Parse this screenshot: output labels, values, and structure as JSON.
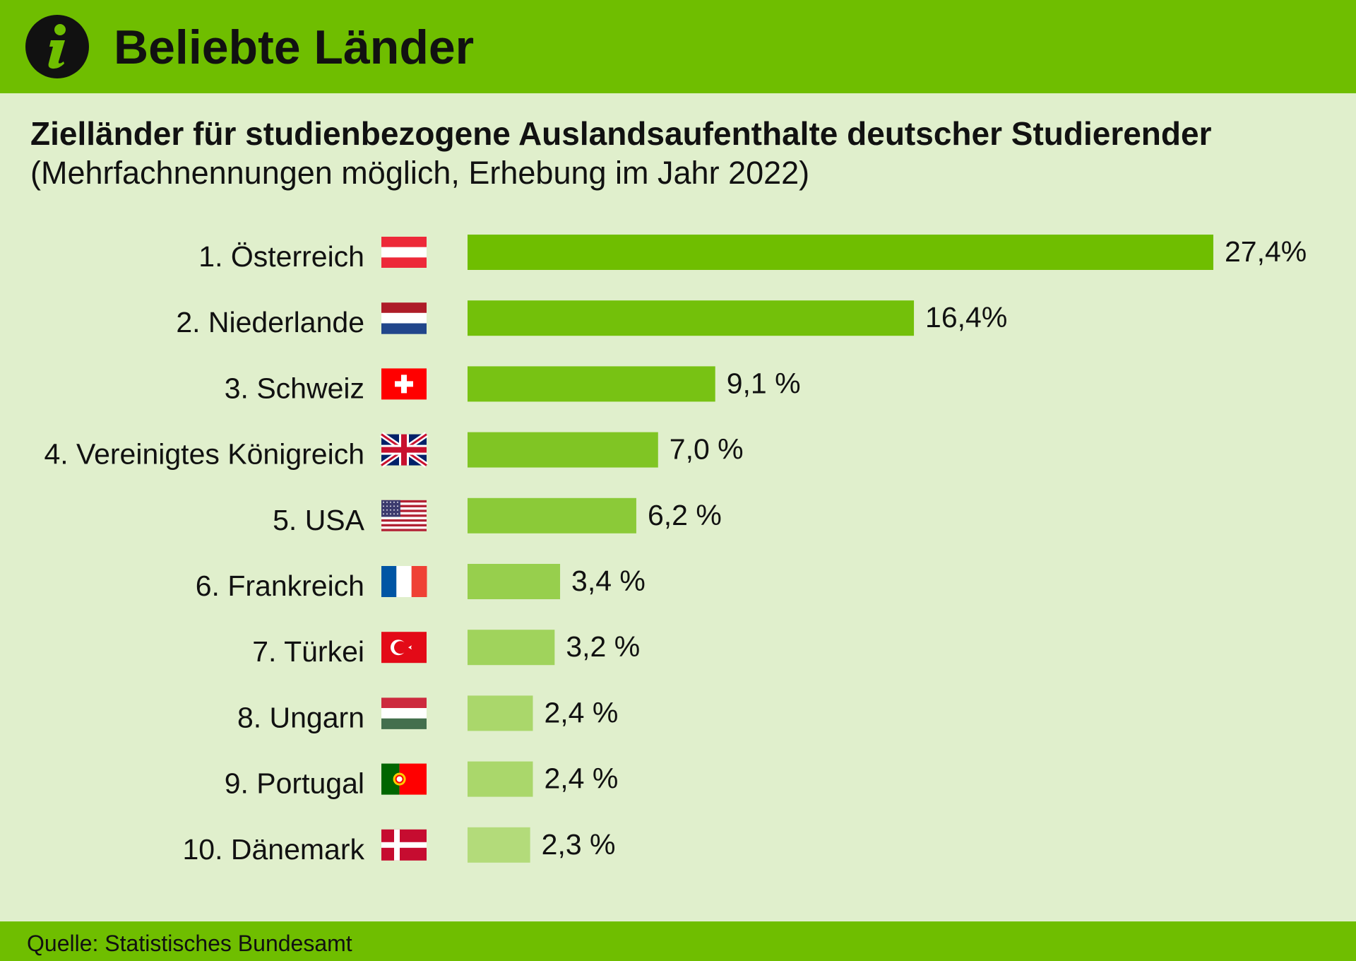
{
  "header": {
    "title": "Beliebte Länder",
    "icon": "info-icon",
    "background_color": "#6fbe00"
  },
  "chart_data": {
    "type": "bar",
    "orientation": "horizontal",
    "title": "Zielländer für studienbezogene Auslandsaufenthalte deutscher Studierender",
    "subtitle": "(Mehrfachnennungen möglich, Erhebung im Jahr 2022)",
    "xlabel": "",
    "ylabel": "",
    "xlim": [
      0,
      27.4
    ],
    "grid": false,
    "categories": [
      "1. Österreich",
      "2. Niederlande",
      "3. Schweiz",
      "4. Vereinigtes Königreich",
      "5. USA",
      "6. Frankreich",
      "7. Türkei",
      "8. Ungarn",
      "9. Portugal",
      "10. Dänemark"
    ],
    "values": [
      27.4,
      16.4,
      9.1,
      7.0,
      6.2,
      3.4,
      3.2,
      2.4,
      2.4,
      2.3
    ],
    "value_labels": [
      "27,4%",
      "16,4%",
      "9,1 %",
      "7,0 %",
      "6,2 %",
      "3,4 %",
      "3,2 %",
      "2,4 %",
      "2,4 %",
      "2,3 %"
    ],
    "flags": [
      "austria-flag-icon",
      "netherlands-flag-icon",
      "switzerland-flag-icon",
      "uk-flag-icon",
      "usa-flag-icon",
      "france-flag-icon",
      "turkey-flag-icon",
      "hungary-flag-icon",
      "portugal-flag-icon",
      "denmark-flag-icon"
    ],
    "bar_colors": [
      "#6fbe00",
      "#73c00a",
      "#78c214",
      "#80c524",
      "#8bca38",
      "#97cf4d",
      "#a0d35c",
      "#aad76b",
      "#aad76b",
      "#b3db7a"
    ]
  },
  "footer": {
    "source": "Quelle: Statistisches Bundesamt"
  }
}
